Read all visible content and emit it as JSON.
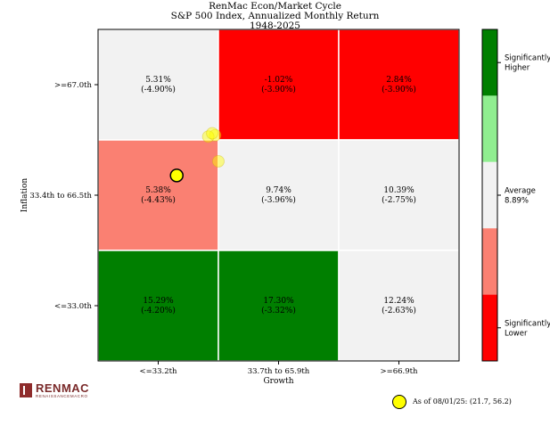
{
  "header": {
    "title_line1": "RenMac Econ/Market Cycle",
    "title_line2": "S&P 500 Index, Annualized Monthly Return",
    "title_line3": "1948-2025"
  },
  "chart_data": {
    "type": "heatmap",
    "xlabel": "Growth",
    "ylabel": "Inflation",
    "x_categories": [
      "<=33.2th",
      "33.7th to 65.9th",
      ">=66.9th"
    ],
    "y_categories": [
      ">=67.0th",
      "33.4th to 66.5th",
      "<=33.0th"
    ],
    "cells": [
      [
        {
          "value": "5.31%",
          "sub": "(-4.90%)",
          "level": "average"
        },
        {
          "value": "-1.02%",
          "sub": "(-3.90%)",
          "level": "significantly_lower"
        },
        {
          "value": "2.84%",
          "sub": "(-3.90%)",
          "level": "significantly_lower"
        }
      ],
      [
        {
          "value": "5.38%",
          "sub": "(-4.43%)",
          "level": "lower"
        },
        {
          "value": "9.74%",
          "sub": "(-3.96%)",
          "level": "average"
        },
        {
          "value": "10.39%",
          "sub": "(-2.75%)",
          "level": "average"
        }
      ],
      [
        {
          "value": "15.29%",
          "sub": "(-4.20%)",
          "level": "significantly_higher"
        },
        {
          "value": "17.30%",
          "sub": "(-3.32%)",
          "level": "significantly_higher"
        },
        {
          "value": "12.24%",
          "sub": "(-2.63%)",
          "level": "average"
        }
      ]
    ],
    "colors": {
      "significantly_higher": "#007f00",
      "higher": "#90ee90",
      "average": "#f2f2f2",
      "lower": "#fa8072",
      "significantly_lower": "#ff0000",
      "marker": "#ffff00"
    },
    "colorbar": [
      {
        "level": "significantly_higher",
        "label_lines": [
          "Significantly",
          "Higher"
        ]
      },
      {
        "level": "higher",
        "label_lines": []
      },
      {
        "level": "average",
        "label_lines": [
          "Average",
          "8.89%"
        ]
      },
      {
        "level": "lower",
        "label_lines": []
      },
      {
        "level": "significantly_lower",
        "label_lines": [
          "Significantly",
          "Lower"
        ]
      }
    ],
    "trail_points": [
      {
        "growth": 32.3,
        "inflation": 68.4
      },
      {
        "growth": 30.4,
        "inflation": 68.0
      },
      {
        "growth": 31.5,
        "inflation": 69.0
      },
      {
        "growth": 33.2,
        "inflation": 60.5
      }
    ],
    "current_point": {
      "growth": 21.7,
      "inflation": 56.2
    },
    "current_label": "As of 08/01/25:  (21.7, 56.2)"
  },
  "logo": {
    "name": "RENMAC",
    "tagline": "RENAISSANCEMACRO"
  }
}
